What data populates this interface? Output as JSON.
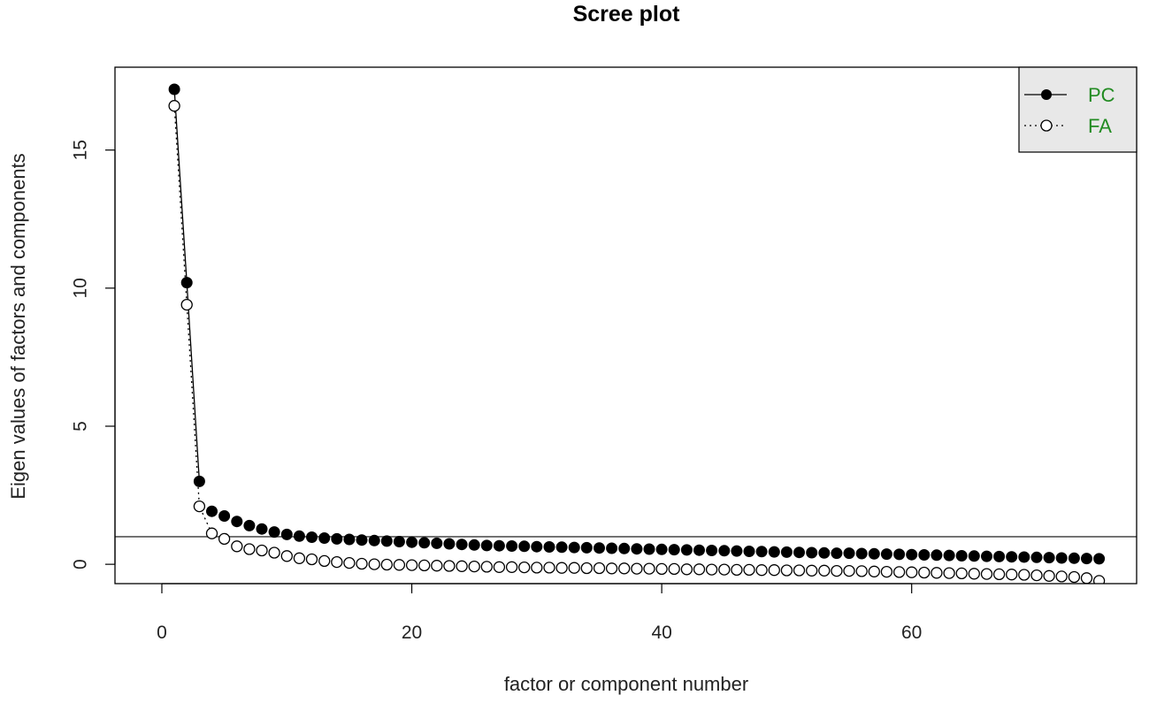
{
  "chart_data": {
    "type": "scatter",
    "title": "Scree plot",
    "xlabel": "factor or component number",
    "ylabel": "Eigen values of factors and components",
    "xlim": [
      -3.75,
      78
    ],
    "ylim": [
      -0.7,
      18.0
    ],
    "x_ticks": [
      0,
      20,
      40,
      60
    ],
    "y_ticks": [
      0,
      5,
      10,
      15
    ],
    "reference_line": {
      "y": 1
    },
    "legend_placement": "top-right",
    "legend_text_color": "#228B22",
    "series": [
      {
        "name": "PC",
        "marker": "filled-circle",
        "line": "solid",
        "line_points": 3,
        "x": [
          1,
          2,
          3,
          4,
          5,
          6,
          7,
          8,
          9,
          10,
          11,
          12,
          13,
          14,
          15,
          16,
          17,
          18,
          19,
          20,
          21,
          22,
          23,
          24,
          25,
          26,
          27,
          28,
          29,
          30,
          31,
          32,
          33,
          34,
          35,
          36,
          37,
          38,
          39,
          40,
          41,
          42,
          43,
          44,
          45,
          46,
          47,
          48,
          49,
          50,
          51,
          52,
          53,
          54,
          55,
          56,
          57,
          58,
          59,
          60,
          61,
          62,
          63,
          64,
          65,
          66,
          67,
          68,
          69,
          70,
          71,
          72,
          73,
          74,
          75
        ],
        "values": [
          17.2,
          10.2,
          3.0,
          1.92,
          1.75,
          1.55,
          1.4,
          1.28,
          1.17,
          1.08,
          1.02,
          0.98,
          0.95,
          0.92,
          0.9,
          0.88,
          0.86,
          0.84,
          0.82,
          0.8,
          0.78,
          0.76,
          0.74,
          0.72,
          0.7,
          0.68,
          0.67,
          0.66,
          0.65,
          0.64,
          0.63,
          0.62,
          0.61,
          0.6,
          0.59,
          0.58,
          0.57,
          0.56,
          0.55,
          0.54,
          0.53,
          0.52,
          0.51,
          0.5,
          0.49,
          0.48,
          0.47,
          0.46,
          0.45,
          0.44,
          0.43,
          0.42,
          0.41,
          0.4,
          0.4,
          0.39,
          0.38,
          0.37,
          0.36,
          0.35,
          0.34,
          0.33,
          0.32,
          0.31,
          0.3,
          0.29,
          0.28,
          0.27,
          0.26,
          0.25,
          0.24,
          0.23,
          0.22,
          0.21,
          0.2
        ]
      },
      {
        "name": "FA",
        "marker": "open-circle",
        "line": "dotted",
        "line_points": 4,
        "x": [
          1,
          2,
          3,
          4,
          5,
          6,
          7,
          8,
          9,
          10,
          11,
          12,
          13,
          14,
          15,
          16,
          17,
          18,
          19,
          20,
          21,
          22,
          23,
          24,
          25,
          26,
          27,
          28,
          29,
          30,
          31,
          32,
          33,
          34,
          35,
          36,
          37,
          38,
          39,
          40,
          41,
          42,
          43,
          44,
          45,
          46,
          47,
          48,
          49,
          50,
          51,
          52,
          53,
          54,
          55,
          56,
          57,
          58,
          59,
          60,
          61,
          62,
          63,
          64,
          65,
          66,
          67,
          68,
          69,
          70,
          71,
          72,
          73,
          74,
          75
        ],
        "values": [
          16.6,
          9.4,
          2.1,
          1.12,
          0.92,
          0.65,
          0.55,
          0.5,
          0.42,
          0.3,
          0.22,
          0.18,
          0.12,
          0.08,
          0.05,
          0.02,
          0.0,
          -0.01,
          -0.02,
          -0.03,
          -0.04,
          -0.05,
          -0.06,
          -0.07,
          -0.08,
          -0.09,
          -0.1,
          -0.1,
          -0.11,
          -0.12,
          -0.12,
          -0.13,
          -0.13,
          -0.14,
          -0.14,
          -0.15,
          -0.15,
          -0.16,
          -0.16,
          -0.17,
          -0.17,
          -0.18,
          -0.18,
          -0.19,
          -0.19,
          -0.2,
          -0.2,
          -0.21,
          -0.21,
          -0.22,
          -0.22,
          -0.23,
          -0.23,
          -0.24,
          -0.24,
          -0.25,
          -0.26,
          -0.27,
          -0.28,
          -0.29,
          -0.3,
          -0.31,
          -0.32,
          -0.33,
          -0.34,
          -0.35,
          -0.36,
          -0.37,
          -0.38,
          -0.4,
          -0.42,
          -0.44,
          -0.46,
          -0.5,
          -0.6
        ]
      }
    ]
  }
}
